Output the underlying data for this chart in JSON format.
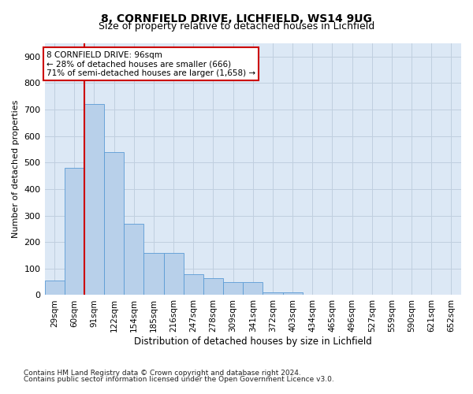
{
  "title1": "8, CORNFIELD DRIVE, LICHFIELD, WS14 9UG",
  "title2": "Size of property relative to detached houses in Lichfield",
  "xlabel": "Distribution of detached houses by size in Lichfield",
  "ylabel": "Number of detached properties",
  "footnote1": "Contains HM Land Registry data © Crown copyright and database right 2024.",
  "footnote2": "Contains public sector information licensed under the Open Government Licence v3.0.",
  "bin_labels": [
    "29sqm",
    "60sqm",
    "91sqm",
    "122sqm",
    "154sqm",
    "185sqm",
    "216sqm",
    "247sqm",
    "278sqm",
    "309sqm",
    "341sqm",
    "372sqm",
    "403sqm",
    "434sqm",
    "465sqm",
    "496sqm",
    "527sqm",
    "559sqm",
    "590sqm",
    "621sqm",
    "652sqm"
  ],
  "bar_values": [
    55,
    480,
    720,
    540,
    270,
    160,
    160,
    80,
    65,
    50,
    50,
    10,
    10,
    0,
    0,
    0,
    0,
    0,
    0,
    0,
    0
  ],
  "bar_color": "#b8d0ea",
  "bar_edge_color": "#5b9bd5",
  "vline_index": 2,
  "vline_color": "#cc0000",
  "annotation_line1": "8 CORNFIELD DRIVE: 96sqm",
  "annotation_line2": "← 28% of detached houses are smaller (666)",
  "annotation_line3": "71% of semi-detached houses are larger (1,658) →",
  "annotation_box_facecolor": "#ffffff",
  "annotation_box_edgecolor": "#cc0000",
  "ylim_max": 950,
  "yticks": [
    0,
    100,
    200,
    300,
    400,
    500,
    600,
    700,
    800,
    900
  ],
  "plot_bg_color": "#dce8f5",
  "fig_bg_color": "#ffffff",
  "grid_color": "#c0cfdf",
  "title1_fontsize": 10,
  "title2_fontsize": 9,
  "xlabel_fontsize": 8.5,
  "ylabel_fontsize": 8,
  "tick_fontsize": 8,
  "xtick_fontsize": 7.5,
  "footnote_fontsize": 6.5
}
